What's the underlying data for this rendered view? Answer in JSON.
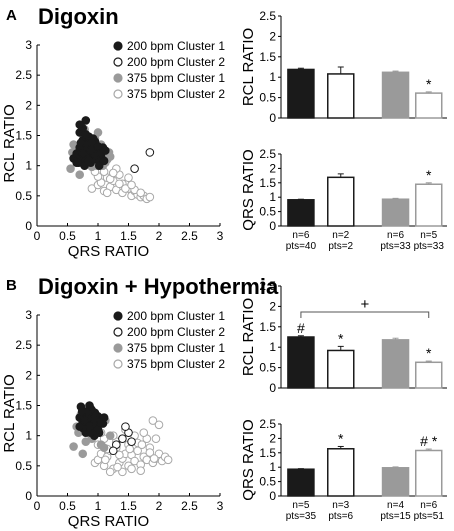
{
  "panels": [
    {
      "letter": "A",
      "title": "Digoxin",
      "scatter": {
        "xlabel": "QRS RATIO",
        "ylabel": "RCL RATIO",
        "xlim": [
          0,
          3
        ],
        "ylim": [
          0,
          3
        ],
        "xticks": [
          "0",
          "0.5",
          "1",
          "1.5",
          "2",
          "2.5",
          "3"
        ],
        "yticks": [
          "0",
          "0.5",
          "1",
          "1.5",
          "2",
          "2.5",
          "3"
        ],
        "legend": [
          "200 bpm Cluster 1",
          "200 bpm Cluster 2",
          "375 bpm Cluster 1",
          "375 bpm Cluster 2"
        ]
      },
      "bars_top": {
        "ylabel": "RCL RATIO",
        "ylim": [
          0,
          2.5
        ],
        "yticks": [
          "0",
          "0.5",
          "1",
          "1.5",
          "2",
          "2.5"
        ],
        "values": [
          1.19,
          1.08,
          1.12,
          0.61
        ],
        "errors": [
          0.03,
          0.17,
          0.03,
          0.03
        ],
        "markers": [
          "",
          "",
          "",
          "*"
        ],
        "bracket": null
      },
      "bars_bottom": {
        "ylabel": "QRS RATIO",
        "ylim": [
          0,
          2.5
        ],
        "yticks": [
          "0",
          "0.5",
          "1",
          "1.5",
          "2",
          "2.5"
        ],
        "values": [
          0.91,
          1.69,
          0.93,
          1.45
        ],
        "errors": [
          0.02,
          0.12,
          0.03,
          0.05
        ],
        "markers": [
          "",
          "",
          "",
          "*"
        ]
      },
      "counts": [
        {
          "n": "n=6",
          "pts": "pts=40"
        },
        {
          "n": "n=2",
          "pts": "pts=2"
        },
        {
          "n": "n=6",
          "pts": "pts=33"
        },
        {
          "n": "n=5",
          "pts": "pts=33"
        }
      ]
    },
    {
      "letter": "B",
      "title": "Digoxin + Hypothermia",
      "scatter": {
        "xlabel": "QRS RATIO",
        "ylabel": "RCL RATIO",
        "xlim": [
          0,
          3
        ],
        "ylim": [
          0,
          3
        ],
        "xticks": [
          "0",
          "0.5",
          "1",
          "1.5",
          "2",
          "2.5",
          "3"
        ],
        "yticks": [
          "0",
          "0.5",
          "1",
          "1.5",
          "2",
          "2.5",
          "3"
        ],
        "legend": [
          "200 bpm Cluster 1",
          "200 bpm Cluster 2",
          "375 bpm Cluster 1",
          "375 bpm Cluster 2"
        ]
      },
      "bars_top": {
        "ylabel": "RCL RATIO",
        "ylim": [
          0,
          2.5
        ],
        "yticks": [
          "0",
          "0.5",
          "1",
          "1.5",
          "2",
          "2.5"
        ],
        "values": [
          1.25,
          0.92,
          1.18,
          0.63
        ],
        "errors": [
          0.03,
          0.1,
          0.04,
          0.03
        ],
        "markers": [
          "#",
          "*",
          "",
          "*"
        ],
        "bracket": "+"
      },
      "bars_bottom": {
        "ylabel": "QRS RATIO",
        "ylim": [
          0,
          2.5
        ],
        "yticks": [
          "0",
          "0.5",
          "1",
          "1.5",
          "2",
          "2.5"
        ],
        "values": [
          0.93,
          1.64,
          0.98,
          1.58
        ],
        "errors": [
          0.02,
          0.08,
          0.03,
          0.05
        ],
        "markers": [
          "",
          "*",
          "",
          "# *"
        ]
      },
      "counts": [
        {
          "n": "n=5",
          "pts": "pts=35"
        },
        {
          "n": "n=3",
          "pts": "pts=6"
        },
        {
          "n": "n=4",
          "pts": "pts=15"
        },
        {
          "n": "n=6",
          "pts": "pts=51"
        }
      ]
    }
  ],
  "colors": {
    "c200_1": "#1a1a1a",
    "c200_2": "#1a1a1a",
    "c375_1": "#9a9a9a",
    "c375_2": "#a8a8a8",
    "bar_black": "#1a1a1a",
    "bar_gray": "#9a9a9a",
    "axis": "#000000"
  },
  "chart_data": [
    {
      "type": "scatter",
      "panel": "A",
      "xlabel": "QRS RATIO",
      "ylabel": "RCL RATIO",
      "xlim": [
        0,
        3
      ],
      "ylim": [
        0,
        3
      ],
      "series": [
        {
          "name": "200 bpm Cluster 1",
          "style": "filled-black",
          "x": [
            0.6,
            0.65,
            0.68,
            0.7,
            0.72,
            0.75,
            0.78,
            0.8,
            0.82,
            0.85,
            0.88,
            0.9,
            0.92,
            0.95,
            0.98,
            1.0,
            1.02,
            1.05,
            1.08,
            1.1,
            0.7,
            0.75,
            0.85,
            0.9,
            0.8,
            0.95,
            1.0,
            0.65,
            0.72,
            0.88,
            0.78,
            0.92,
            0.82,
            1.05,
            0.7,
            0.8,
            0.9,
            0.75,
            0.85,
            1.12
          ],
          "y": [
            1.12,
            1.2,
            1.05,
            1.3,
            1.15,
            1.42,
            1.25,
            1.1,
            1.35,
            1.2,
            1.05,
            1.28,
            1.15,
            1.4,
            1.1,
            1.22,
            1.0,
            1.15,
            1.3,
            1.08,
            1.55,
            1.62,
            1.48,
            1.1,
            1.75,
            1.18,
            1.32,
            1.05,
            1.38,
            1.25,
            1.0,
            1.45,
            1.12,
            1.2,
            1.68,
            1.52,
            1.38,
            1.2,
            1.08,
            1.25
          ]
        },
        {
          "name": "200 bpm Cluster 2",
          "style": "open-black",
          "x": [
            1.85,
            1.6
          ],
          "y": [
            1.22,
            0.95
          ]
        },
        {
          "name": "375 bpm Cluster 1",
          "style": "filled-gray",
          "x": [
            0.55,
            0.62,
            0.68,
            0.72,
            0.78,
            0.82,
            0.88,
            0.92,
            0.98,
            1.02,
            1.08,
            1.12,
            1.18,
            0.6,
            0.7,
            0.75,
            0.85,
            0.95,
            1.05,
            1.15,
            0.65,
            0.8,
            0.9,
            1.0,
            1.1,
            0.72,
            0.88,
            0.98,
            1.08,
            0.58,
            0.78,
            1.2,
            0.95
          ],
          "y": [
            0.95,
            1.15,
            1.28,
            1.05,
            1.38,
            1.2,
            1.1,
            1.32,
            1.0,
            1.25,
            1.15,
            1.05,
            1.22,
            1.35,
            0.85,
            1.52,
            1.28,
            1.45,
            1.35,
            1.1,
            1.08,
            1.05,
            0.98,
            1.55,
            1.25,
            1.2,
            1.4,
            1.12,
            1.0,
            1.22,
            1.6,
            1.15,
            1.05
          ]
        },
        {
          "name": "375 bpm Cluster 2",
          "style": "open-gray",
          "x": [
            0.9,
            1.0,
            1.05,
            1.1,
            1.15,
            1.2,
            1.25,
            1.3,
            1.35,
            1.4,
            1.45,
            1.5,
            1.55,
            1.6,
            1.65,
            1.7,
            1.75,
            1.8,
            1.85,
            1.0,
            1.1,
            1.2,
            1.3,
            1.4,
            1.5,
            1.6,
            1.7,
            0.95,
            1.15,
            1.25,
            1.35,
            1.45,
            1.55
          ],
          "y": [
            0.62,
            0.68,
            0.72,
            0.58,
            0.8,
            0.65,
            0.75,
            0.6,
            0.85,
            0.55,
            0.7,
            0.62,
            0.5,
            0.58,
            0.52,
            0.48,
            0.5,
            0.45,
            0.48,
            0.82,
            0.9,
            0.78,
            0.95,
            0.7,
            0.8,
            0.6,
            0.55,
            0.9,
            0.55,
            0.88,
            0.7,
            0.62,
            0.68
          ]
        }
      ]
    },
    {
      "type": "bar",
      "panel": "A",
      "ylabel": "RCL RATIO",
      "categories": [
        "200 bpm Cluster 1",
        "200 bpm Cluster 2",
        "375 bpm Cluster 1",
        "375 bpm Cluster 2"
      ],
      "values": [
        1.19,
        1.08,
        1.12,
        0.61
      ],
      "errors": [
        0.03,
        0.17,
        0.03,
        0.03
      ],
      "ylim": [
        0,
        2.5
      ]
    },
    {
      "type": "bar",
      "panel": "A",
      "ylabel": "QRS RATIO",
      "categories": [
        "200 bpm Cluster 1",
        "200 bpm Cluster 2",
        "375 bpm Cluster 1",
        "375 bpm Cluster 2"
      ],
      "values": [
        0.91,
        1.69,
        0.93,
        1.45
      ],
      "errors": [
        0.02,
        0.12,
        0.03,
        0.05
      ],
      "ylim": [
        0,
        2.5
      ]
    },
    {
      "type": "scatter",
      "panel": "B",
      "xlabel": "QRS RATIO",
      "ylabel": "RCL RATIO",
      "xlim": [
        0,
        3
      ],
      "ylim": [
        0,
        3
      ],
      "series": [
        {
          "name": "200 bpm Cluster 1",
          "style": "filled-black",
          "x": [
            0.7,
            0.75,
            0.78,
            0.8,
            0.82,
            0.85,
            0.88,
            0.9,
            0.92,
            0.95,
            0.98,
            1.0,
            1.02,
            1.05,
            0.72,
            0.8,
            0.86,
            0.94,
            1.08,
            0.76,
            0.84,
            0.9,
            0.98,
            0.7,
            0.82,
            0.92,
            1.0,
            0.78,
            0.88,
            0.96,
            1.04,
            0.74,
            0.86,
            0.94,
            1.1
          ],
          "y": [
            1.3,
            1.22,
            1.4,
            1.15,
            1.35,
            1.2,
            1.45,
            1.28,
            1.1,
            1.38,
            1.18,
            1.32,
            1.05,
            1.25,
            1.48,
            1.05,
            1.5,
            1.0,
            1.2,
            1.12,
            1.3,
            1.42,
            1.25,
            1.15,
            1.38,
            1.18,
            1.1,
            1.25,
            1.05,
            1.35,
            1.22,
            1.4,
            1.15,
            1.28,
            1.3
          ]
        },
        {
          "name": "200 bpm Cluster 2",
          "style": "open-black",
          "x": [
            1.5,
            1.3,
            1.4,
            1.25,
            1.55,
            1.45
          ],
          "y": [
            1.05,
            0.85,
            0.95,
            0.75,
            0.9,
            1.15
          ]
        },
        {
          "name": "375 bpm Cluster 1",
          "style": "filled-gray",
          "x": [
            0.6,
            0.68,
            0.75,
            0.82,
            0.9,
            0.98,
            1.05,
            1.12,
            1.2,
            0.65,
            0.8,
            0.95,
            1.1,
            0.72,
            0.88
          ],
          "y": [
            0.82,
            1.05,
            0.7,
            1.2,
            0.95,
            1.1,
            0.85,
            1.25,
            1.0,
            1.15,
            0.9,
            1.3,
            0.8,
            1.35,
            1.02
          ]
        },
        {
          "name": "375 bpm Cluster 2",
          "style": "open-gray",
          "x": [
            0.95,
            1.0,
            1.05,
            1.1,
            1.15,
            1.2,
            1.25,
            1.3,
            1.35,
            1.4,
            1.45,
            1.5,
            1.55,
            1.6,
            1.65,
            1.7,
            1.75,
            1.8,
            1.85,
            1.9,
            1.95,
            2.0,
            2.05,
            2.1,
            2.15,
            1.0,
            1.1,
            1.2,
            1.3,
            1.4,
            1.5,
            1.6,
            1.7,
            1.8,
            1.9,
            2.0,
            1.05,
            1.15,
            1.25,
            1.35,
            1.45,
            1.55,
            1.65,
            1.75,
            1.85,
            1.95,
            1.12,
            1.32,
            1.52,
            1.72,
            1.92
          ],
          "y": [
            0.55,
            0.6,
            0.7,
            0.5,
            0.65,
            0.75,
            0.45,
            0.8,
            0.55,
            0.62,
            0.7,
            0.5,
            0.68,
            0.58,
            0.75,
            0.52,
            0.65,
            0.6,
            0.8,
            0.55,
            0.62,
            0.7,
            0.58,
            0.65,
            0.6,
            0.85,
            0.95,
            0.4,
            0.9,
            0.4,
            0.85,
            1.0,
            0.42,
            0.95,
            1.25,
            1.18,
            1.05,
            0.78,
            1.0,
            0.68,
            1.1,
            0.45,
            0.88,
            1.05,
            0.72,
            0.95,
            0.6,
            0.48,
            0.78,
            0.85,
            0.62
          ]
        }
      ]
    },
    {
      "type": "bar",
      "panel": "B",
      "ylabel": "RCL RATIO",
      "categories": [
        "200 bpm Cluster 1",
        "200 bpm Cluster 2",
        "375 bpm Cluster 1",
        "375 bpm Cluster 2"
      ],
      "values": [
        1.25,
        0.92,
        1.18,
        0.63
      ],
      "errors": [
        0.03,
        0.1,
        0.04,
        0.03
      ],
      "ylim": [
        0,
        2.5
      ]
    },
    {
      "type": "bar",
      "panel": "B",
      "ylabel": "QRS RATIO",
      "categories": [
        "200 bpm Cluster 1",
        "200 bpm Cluster 2",
        "375 bpm Cluster 1",
        "375 bpm Cluster 2"
      ],
      "values": [
        0.93,
        1.64,
        0.98,
        1.58
      ],
      "errors": [
        0.02,
        0.08,
        0.03,
        0.05
      ],
      "ylim": [
        0,
        2.5
      ]
    }
  ]
}
